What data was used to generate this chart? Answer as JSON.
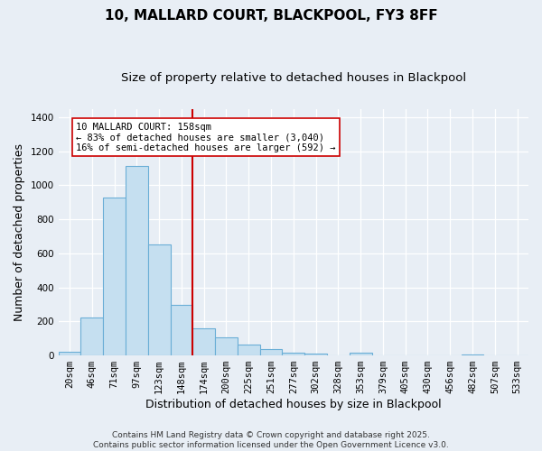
{
  "title_line1": "10, MALLARD COURT, BLACKPOOL, FY3 8FF",
  "title_line2": "Size of property relative to detached houses in Blackpool",
  "xlabel": "Distribution of detached houses by size in Blackpool",
  "ylabel": "Number of detached properties",
  "categories": [
    "20sqm",
    "46sqm",
    "71sqm",
    "97sqm",
    "123sqm",
    "148sqm",
    "174sqm",
    "200sqm",
    "225sqm",
    "251sqm",
    "277sqm",
    "302sqm",
    "328sqm",
    "353sqm",
    "379sqm",
    "405sqm",
    "430sqm",
    "456sqm",
    "482sqm",
    "507sqm",
    "533sqm"
  ],
  "values": [
    20,
    225,
    930,
    1115,
    655,
    295,
    160,
    105,
    65,
    40,
    15,
    10,
    0,
    15,
    0,
    0,
    0,
    0,
    5,
    0,
    0
  ],
  "bar_color": "#c5dff0",
  "bar_edge_color": "#6aaed6",
  "vline_x": 5.5,
  "vline_color": "#cc0000",
  "annotation_text": "10 MALLARD COURT: 158sqm\n← 83% of detached houses are smaller (3,040)\n16% of semi-detached houses are larger (592) →",
  "annotation_box_color": "#ffffff",
  "annotation_box_edge": "#cc0000",
  "ylim": [
    0,
    1450
  ],
  "yticks": [
    0,
    200,
    400,
    600,
    800,
    1000,
    1200,
    1400
  ],
  "background_color": "#e8eef5",
  "footer_line1": "Contains HM Land Registry data © Crown copyright and database right 2025.",
  "footer_line2": "Contains public sector information licensed under the Open Government Licence v3.0.",
  "title_fontsize": 11,
  "subtitle_fontsize": 9.5,
  "axis_label_fontsize": 9,
  "tick_fontsize": 7.5,
  "annotation_fontsize": 7.5,
  "footer_fontsize": 6.5
}
